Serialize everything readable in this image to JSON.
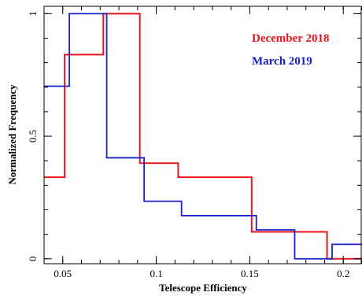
{
  "chart_data": {
    "type": "line",
    "xlabel": "Telescope Efficiency",
    "ylabel": "Normalized Frequency",
    "xlim": [
      0.04,
      0.21
    ],
    "ylim": [
      -0.02,
      1.03
    ],
    "x_ticks": [
      {
        "value": 0.05,
        "label": "0.05"
      },
      {
        "value": 0.1,
        "label": "0.1"
      },
      {
        "value": 0.15,
        "label": "0.15"
      },
      {
        "value": 0.2,
        "label": "0.2"
      }
    ],
    "y_ticks": [
      {
        "value": 0,
        "label": "0"
      },
      {
        "value": 0.5,
        "label": "0.5"
      },
      {
        "value": 1,
        "label": "1"
      }
    ],
    "legend_position": "top-right",
    "series": [
      {
        "name": "December 2018",
        "color": "#e8141c",
        "edges": [
          0.04,
          0.051,
          0.0717,
          0.0912,
          0.1117,
          0.151,
          0.1913,
          0.21
        ],
        "values": [
          0.333,
          0.833,
          1.0,
          0.39,
          0.333,
          0.11,
          0.0
        ]
      },
      {
        "name": "March 2019",
        "color": "#1a20c8",
        "edges": [
          0.04,
          0.0535,
          0.0735,
          0.0935,
          0.1135,
          0.1535,
          0.174,
          0.194,
          0.21
        ],
        "values": [
          0.704,
          1.0,
          0.412,
          0.235,
          0.176,
          0.118,
          0.0,
          0.059
        ]
      }
    ]
  }
}
